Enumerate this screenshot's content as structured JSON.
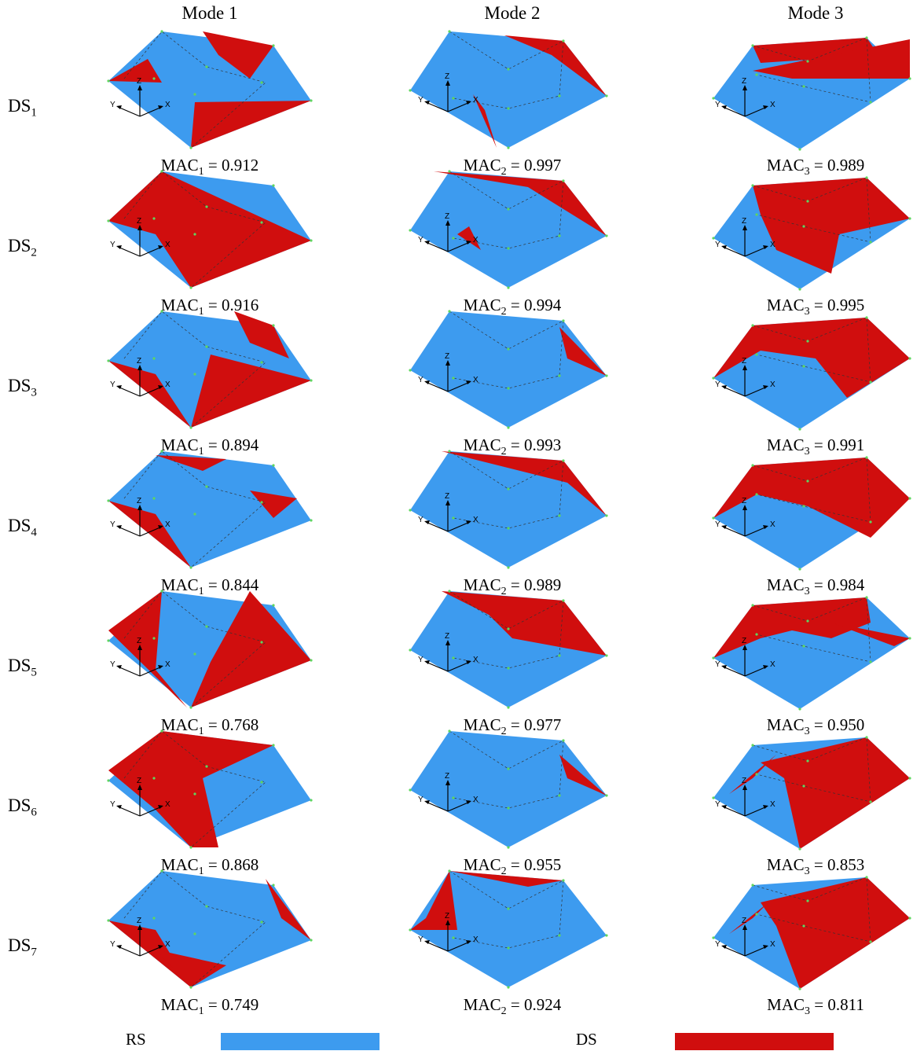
{
  "columns": [
    "Mode 1",
    "Mode 2",
    "Mode 3"
  ],
  "rows": [
    {
      "label_main": "DS",
      "label_sub": "1",
      "macs": [
        {
          "label_main": "MAC",
          "label_sub": "1",
          "value": "= 0.912"
        },
        {
          "label_main": "MAC",
          "label_sub": "2",
          "value": "= 0.997"
        },
        {
          "label_main": "MAC",
          "label_sub": "3",
          "value": "= 0.989"
        }
      ]
    },
    {
      "label_main": "DS",
      "label_sub": "2",
      "macs": [
        {
          "label_main": "MAC",
          "label_sub": "1",
          "value": "= 0.916"
        },
        {
          "label_main": "MAC",
          "label_sub": "2",
          "value": "= 0.994"
        },
        {
          "label_main": "MAC",
          "label_sub": "3",
          "value": "= 0.995"
        }
      ]
    },
    {
      "label_main": "DS",
      "label_sub": "3",
      "macs": [
        {
          "label_main": "MAC",
          "label_sub": "1",
          "value": "= 0.894"
        },
        {
          "label_main": "MAC",
          "label_sub": "2",
          "value": "= 0.993"
        },
        {
          "label_main": "MAC",
          "label_sub": "3",
          "value": "= 0.991"
        }
      ]
    },
    {
      "label_main": "DS",
      "label_sub": "4",
      "macs": [
        {
          "label_main": "MAC",
          "label_sub": "1",
          "value": "= 0.844"
        },
        {
          "label_main": "MAC",
          "label_sub": "2",
          "value": "= 0.989"
        },
        {
          "label_main": "MAC",
          "label_sub": "3",
          "value": "= 0.984"
        }
      ]
    },
    {
      "label_main": "DS",
      "label_sub": "5",
      "macs": [
        {
          "label_main": "MAC",
          "label_sub": "1",
          "value": "= 0.768"
        },
        {
          "label_main": "MAC",
          "label_sub": "2",
          "value": "= 0.977"
        },
        {
          "label_main": "MAC",
          "label_sub": "3",
          "value": "= 0.950"
        }
      ]
    },
    {
      "label_main": "DS",
      "label_sub": "6",
      "macs": [
        {
          "label_main": "MAC",
          "label_sub": "1",
          "value": "= 0.868"
        },
        {
          "label_main": "MAC",
          "label_sub": "2",
          "value": "= 0.955"
        },
        {
          "label_main": "MAC",
          "label_sub": "3",
          "value": "= 0.853"
        }
      ]
    },
    {
      "label_main": "DS",
      "label_sub": "7",
      "macs": [
        {
          "label_main": "MAC",
          "label_sub": "1",
          "value": "= 0.749"
        },
        {
          "label_main": "MAC",
          "label_sub": "2",
          "value": "= 0.924"
        },
        {
          "label_main": "MAC",
          "label_sub": "3",
          "value": "= 0.811"
        }
      ]
    }
  ],
  "axis_labels": {
    "z": "Z",
    "y": "Y",
    "x": "X"
  },
  "legend": {
    "rs_label": "RS",
    "rs_color": "#3d9bef",
    "ds_label": "DS",
    "ds_color": "#d00e0e"
  },
  "colors": {
    "rs": "#3d9bef",
    "ds": "#d00e0e",
    "node": "#5fd65f",
    "edge": "#333333"
  }
}
